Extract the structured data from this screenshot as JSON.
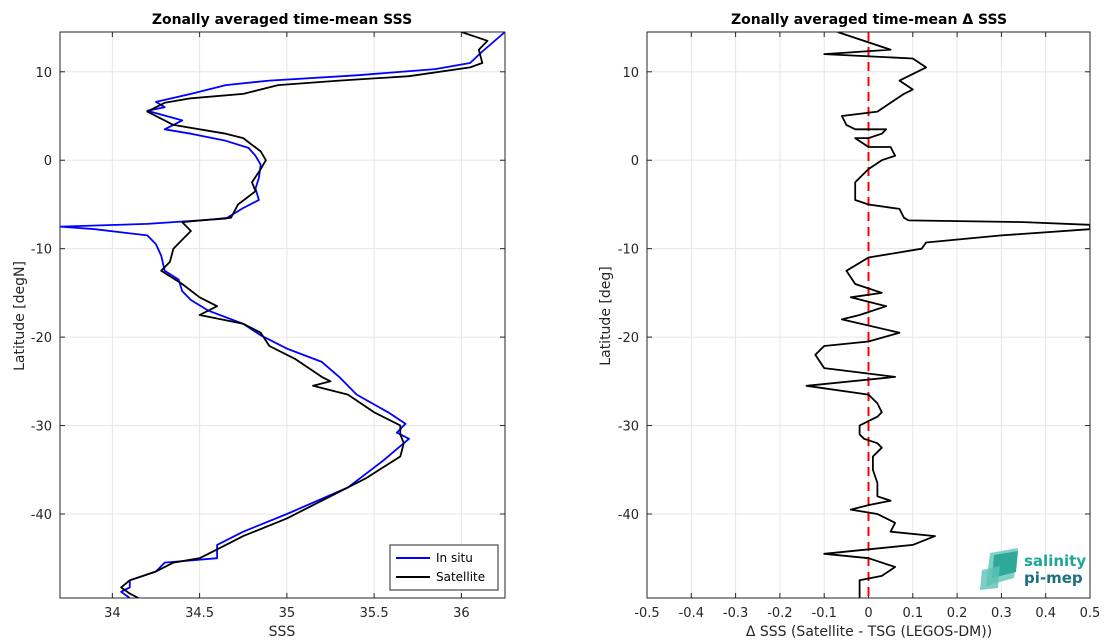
{
  "chart_data": [
    {
      "type": "line",
      "title": "Zonally averaged time-mean SSS",
      "xlabel": "SSS",
      "ylabel": "Latitude [degN]",
      "xlim": [
        33.7,
        36.25
      ],
      "ylim": [
        -49.5,
        14.5
      ],
      "xticks": [
        34,
        34.5,
        35,
        35.5,
        36
      ],
      "xtick_labels": [
        "34",
        "34.5",
        "35",
        "35.5",
        "36"
      ],
      "yticks": [
        -40,
        -30,
        -20,
        -10,
        0,
        10
      ],
      "ytick_labels": [
        "-40",
        "-30",
        "-20",
        "-10",
        "0",
        "10"
      ],
      "grid": true,
      "legend_position": "bottom-right",
      "series": [
        {
          "name": "In situ",
          "color": "#0000ff",
          "points": [
            [
              36.25,
              14.5
            ],
            [
              36.12,
              12.3
            ],
            [
              36.05,
              11.0
            ],
            [
              35.85,
              10.3
            ],
            [
              35.4,
              9.6
            ],
            [
              34.9,
              9.0
            ],
            [
              34.65,
              8.5
            ],
            [
              34.45,
              7.5
            ],
            [
              34.25,
              6.6
            ],
            [
              34.3,
              6.0
            ],
            [
              34.2,
              5.6
            ],
            [
              34.4,
              4.5
            ],
            [
              34.3,
              3.5
            ],
            [
              34.45,
              3.0
            ],
            [
              34.65,
              2.2
            ],
            [
              34.78,
              1.4
            ],
            [
              34.82,
              0.5
            ],
            [
              34.85,
              -0.5
            ],
            [
              34.84,
              -2.0
            ],
            [
              34.82,
              -3.2
            ],
            [
              34.84,
              -4.5
            ],
            [
              34.75,
              -5.4
            ],
            [
              34.65,
              -6.6
            ],
            [
              34.2,
              -7.2
            ],
            [
              33.7,
              -7.5
            ],
            [
              33.9,
              -7.8
            ],
            [
              34.2,
              -8.5
            ],
            [
              34.25,
              -9.5
            ],
            [
              34.28,
              -10.8
            ],
            [
              34.3,
              -12.5
            ],
            [
              34.38,
              -13.5
            ],
            [
              34.4,
              -14.8
            ],
            [
              34.45,
              -15.8
            ],
            [
              34.55,
              -17.0
            ],
            [
              34.75,
              -18.5
            ],
            [
              34.85,
              -19.8
            ],
            [
              35.0,
              -21.3
            ],
            [
              35.2,
              -22.8
            ],
            [
              35.3,
              -24.5
            ],
            [
              35.4,
              -26.5
            ],
            [
              35.58,
              -28.5
            ],
            [
              35.68,
              -29.8
            ],
            [
              35.63,
              -30.8
            ],
            [
              35.7,
              -31.5
            ],
            [
              35.55,
              -34.0
            ],
            [
              35.45,
              -35.5
            ],
            [
              35.35,
              -37.0
            ],
            [
              35.0,
              -40.0
            ],
            [
              34.75,
              -42.0
            ],
            [
              34.6,
              -43.5
            ],
            [
              34.6,
              -45.0
            ],
            [
              34.3,
              -45.5
            ],
            [
              34.25,
              -46.5
            ],
            [
              34.1,
              -47.5
            ],
            [
              34.1,
              -48.3
            ],
            [
              34.05,
              -48.8
            ],
            [
              34.1,
              -49.5
            ]
          ]
        },
        {
          "name": "Satellite",
          "color": "#000000",
          "points": [
            [
              36.0,
              14.5
            ],
            [
              36.15,
              13.5
            ],
            [
              36.1,
              12.5
            ],
            [
              36.12,
              11.0
            ],
            [
              36.05,
              10.5
            ],
            [
              35.7,
              9.5
            ],
            [
              35.3,
              9.0
            ],
            [
              34.95,
              8.5
            ],
            [
              34.75,
              7.5
            ],
            [
              34.45,
              7.0
            ],
            [
              34.3,
              6.5
            ],
            [
              34.2,
              5.5
            ],
            [
              34.35,
              4.0
            ],
            [
              34.65,
              3.0
            ],
            [
              34.75,
              2.5
            ],
            [
              34.85,
              1.0
            ],
            [
              34.88,
              0.0
            ],
            [
              34.85,
              -1.0
            ],
            [
              34.8,
              -2.5
            ],
            [
              34.82,
              -3.5
            ],
            [
              34.72,
              -5.0
            ],
            [
              34.68,
              -6.5
            ],
            [
              34.4,
              -7.0
            ],
            [
              34.45,
              -8.0
            ],
            [
              34.4,
              -9.0
            ],
            [
              34.35,
              -10.0
            ],
            [
              34.33,
              -11.5
            ],
            [
              34.28,
              -12.5
            ],
            [
              34.4,
              -14.0
            ],
            [
              34.5,
              -15.5
            ],
            [
              34.6,
              -16.5
            ],
            [
              34.5,
              -17.5
            ],
            [
              34.75,
              -18.5
            ],
            [
              34.85,
              -19.5
            ],
            [
              34.9,
              -21.0
            ],
            [
              35.05,
              -22.5
            ],
            [
              35.2,
              -24.5
            ],
            [
              35.25,
              -25.0
            ],
            [
              35.15,
              -25.5
            ],
            [
              35.35,
              -26.5
            ],
            [
              35.5,
              -28.5
            ],
            [
              35.65,
              -30.0
            ],
            [
              35.65,
              -31.0
            ],
            [
              35.67,
              -32.0
            ],
            [
              35.65,
              -33.5
            ],
            [
              35.45,
              -36.0
            ],
            [
              35.2,
              -38.5
            ],
            [
              35.0,
              -40.5
            ],
            [
              34.75,
              -42.5
            ],
            [
              34.6,
              -44.0
            ],
            [
              34.5,
              -45.0
            ],
            [
              34.35,
              -45.5
            ],
            [
              34.25,
              -46.5
            ],
            [
              34.1,
              -47.5
            ],
            [
              34.05,
              -48.3
            ],
            [
              34.1,
              -49.0
            ],
            [
              34.15,
              -49.5
            ]
          ]
        }
      ]
    },
    {
      "type": "line",
      "title": "Zonally averaged time-mean Δ SSS",
      "xlabel": "Δ SSS (Satellite - TSG (LEGOS-DM))",
      "ylabel": "Latitude [deg]",
      "xlim": [
        -0.5,
        0.5
      ],
      "ylim": [
        -49.5,
        14.5
      ],
      "xticks": [
        -0.5,
        -0.4,
        -0.3,
        -0.2,
        -0.1,
        0,
        0.1,
        0.2,
        0.3,
        0.4,
        0.5
      ],
      "xtick_labels": [
        "-0.5",
        "-0.4",
        "-0.3",
        "-0.2",
        "-0.1",
        "0",
        "0.1",
        "0.2",
        "0.3",
        "0.4",
        "0.5"
      ],
      "yticks": [
        -40,
        -30,
        -20,
        -10,
        0,
        10
      ],
      "ytick_labels": [
        "-40",
        "-30",
        "-20",
        "-10",
        "0",
        "10"
      ],
      "grid": true,
      "reference_line": {
        "x": 0,
        "color": "#ff0000",
        "style": "dashed"
      },
      "series": [
        {
          "color": "#000000",
          "points": [
            [
              -0.07,
              14.5
            ],
            [
              0.05,
              12.5
            ],
            [
              -0.1,
              12.0
            ],
            [
              0.1,
              11.5
            ],
            [
              0.13,
              10.5
            ],
            [
              0.07,
              9.0
            ],
            [
              0.1,
              8.0
            ],
            [
              0.08,
              7.5
            ],
            [
              0.05,
              6.5
            ],
            [
              0.02,
              5.5
            ],
            [
              -0.06,
              5.0
            ],
            [
              -0.05,
              4.0
            ],
            [
              -0.03,
              3.5
            ],
            [
              0.04,
              3.5
            ],
            [
              0.03,
              3.0
            ],
            [
              0.0,
              2.5
            ],
            [
              -0.03,
              2.5
            ],
            [
              0.0,
              1.5
            ],
            [
              0.05,
              1.5
            ],
            [
              0.06,
              0.5
            ],
            [
              0.03,
              0.0
            ],
            [
              0.0,
              -1.0
            ],
            [
              -0.02,
              -2.0
            ],
            [
              -0.03,
              -2.5
            ],
            [
              -0.03,
              -4.5
            ],
            [
              0.0,
              -5.0
            ],
            [
              0.07,
              -5.5
            ],
            [
              0.08,
              -6.5
            ],
            [
              0.09,
              -6.8
            ],
            [
              0.35,
              -7.0
            ],
            [
              0.5,
              -7.3
            ],
            [
              0.5,
              -7.8
            ],
            [
              0.3,
              -8.5
            ],
            [
              0.13,
              -9.3
            ],
            [
              0.12,
              -10.0
            ],
            [
              0.0,
              -11.0
            ],
            [
              -0.05,
              -12.5
            ],
            [
              -0.03,
              -14.0
            ],
            [
              0.03,
              -15.0
            ],
            [
              -0.04,
              -15.5
            ],
            [
              0.04,
              -16.5
            ],
            [
              -0.02,
              -17.5
            ],
            [
              -0.06,
              -18.0
            ],
            [
              0.07,
              -19.5
            ],
            [
              0.0,
              -20.5
            ],
            [
              -0.1,
              -21.0
            ],
            [
              -0.12,
              -22.0
            ],
            [
              -0.1,
              -23.5
            ],
            [
              0.06,
              -24.5
            ],
            [
              -0.14,
              -25.5
            ],
            [
              0.0,
              -26.5
            ],
            [
              0.02,
              -27.5
            ],
            [
              0.03,
              -28.5
            ],
            [
              0.02,
              -29.0
            ],
            [
              0.0,
              -29.5
            ],
            [
              -0.02,
              -30.0
            ],
            [
              -0.02,
              -31.0
            ],
            [
              -0.01,
              -31.5
            ],
            [
              0.02,
              -32.0
            ],
            [
              0.03,
              -32.5
            ],
            [
              0.01,
              -33.5
            ],
            [
              0.01,
              -35.0
            ],
            [
              0.02,
              -36.5
            ],
            [
              0.02,
              -38.0
            ],
            [
              0.05,
              -38.5
            ],
            [
              0.0,
              -39.0
            ],
            [
              -0.04,
              -39.5
            ],
            [
              0.02,
              -40.0
            ],
            [
              0.06,
              -41.0
            ],
            [
              0.05,
              -42.0
            ],
            [
              0.15,
              -42.5
            ],
            [
              0.1,
              -43.5
            ],
            [
              -0.1,
              -44.5
            ],
            [
              0.0,
              -45.0
            ],
            [
              0.06,
              -46.0
            ],
            [
              0.03,
              -47.0
            ],
            [
              -0.02,
              -47.5
            ],
            [
              -0.02,
              -49.0
            ],
            [
              -0.02,
              -49.5
            ]
          ]
        }
      ],
      "logo": {
        "line1": "salinity",
        "line2": "pi-mep",
        "color1": "#1fa69a",
        "color2": "#1f6f80"
      }
    }
  ]
}
